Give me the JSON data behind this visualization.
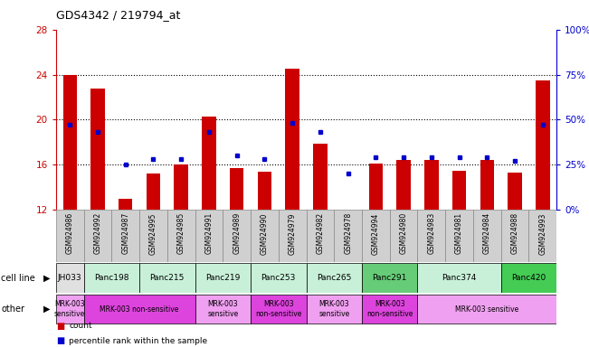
{
  "title": "GDS4342 / 219794_at",
  "samples": [
    "GSM924986",
    "GSM924992",
    "GSM924987",
    "GSM924995",
    "GSM924985",
    "GSM924991",
    "GSM924989",
    "GSM924990",
    "GSM924979",
    "GSM924982",
    "GSM924978",
    "GSM924994",
    "GSM924980",
    "GSM924983",
    "GSM924981",
    "GSM924984",
    "GSM924988",
    "GSM924993"
  ],
  "counts": [
    24.0,
    22.8,
    13.0,
    15.2,
    16.0,
    20.3,
    15.7,
    15.4,
    24.5,
    17.9,
    11.8,
    16.1,
    16.4,
    16.4,
    15.5,
    16.4,
    15.3,
    23.5
  ],
  "percentiles": [
    47,
    43,
    25,
    28,
    28,
    43,
    30,
    28,
    48,
    43,
    20,
    29,
    29,
    29,
    29,
    29,
    27,
    47
  ],
  "cell_lines": [
    {
      "name": "JH033",
      "start": 0,
      "end": 1,
      "color": "#e0e0e0"
    },
    {
      "name": "Panc198",
      "start": 1,
      "end": 3,
      "color": "#c8f0d8"
    },
    {
      "name": "Panc215",
      "start": 3,
      "end": 5,
      "color": "#c8f0d8"
    },
    {
      "name": "Panc219",
      "start": 5,
      "end": 7,
      "color": "#c8f0d8"
    },
    {
      "name": "Panc253",
      "start": 7,
      "end": 9,
      "color": "#c8f0d8"
    },
    {
      "name": "Panc265",
      "start": 9,
      "end": 11,
      "color": "#c8f0d8"
    },
    {
      "name": "Panc291",
      "start": 11,
      "end": 13,
      "color": "#66cc77"
    },
    {
      "name": "Panc374",
      "start": 13,
      "end": 16,
      "color": "#c8f0d8"
    },
    {
      "name": "Panc420",
      "start": 16,
      "end": 18,
      "color": "#44cc55"
    }
  ],
  "other_groups": [
    {
      "label": "MRK-003\nsensitive",
      "start": 0,
      "end": 1,
      "color": "#f0a0f0"
    },
    {
      "label": "MRK-003 non-sensitive",
      "start": 1,
      "end": 5,
      "color": "#dd44dd"
    },
    {
      "label": "MRK-003\nsensitive",
      "start": 5,
      "end": 7,
      "color": "#f0a0f0"
    },
    {
      "label": "MRK-003\nnon-sensitive",
      "start": 7,
      "end": 9,
      "color": "#dd44dd"
    },
    {
      "label": "MRK-003\nsensitive",
      "start": 9,
      "end": 11,
      "color": "#f0a0f0"
    },
    {
      "label": "MRK-003\nnon-sensitive",
      "start": 11,
      "end": 13,
      "color": "#dd44dd"
    },
    {
      "label": "MRK-003 sensitive",
      "start": 13,
      "end": 18,
      "color": "#f0a0f0"
    }
  ],
  "ylim_left": [
    12,
    28
  ],
  "ylim_right": [
    0,
    100
  ],
  "yticks_left": [
    12,
    16,
    20,
    24,
    28
  ],
  "yticks_right": [
    0,
    25,
    50,
    75,
    100
  ],
  "bar_color": "#cc0000",
  "dot_color": "#0000cc",
  "bg_color": "#ffffff",
  "left_tick_color": "#cc0000",
  "right_tick_color": "#0000cc",
  "xtick_bg_color": "#d0d0d0"
}
